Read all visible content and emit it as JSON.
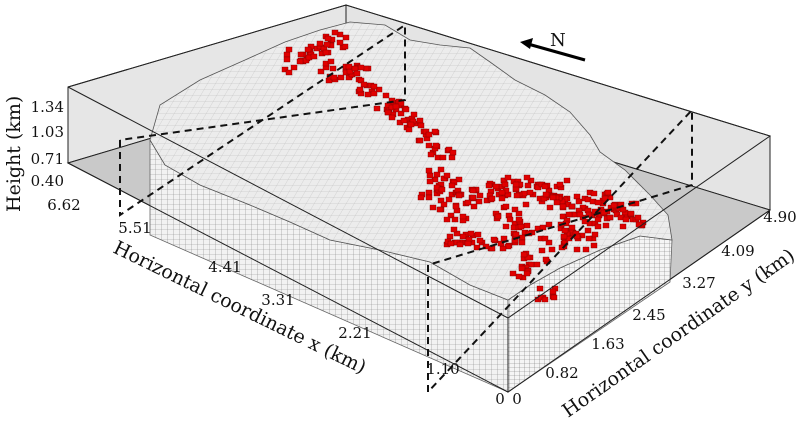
{
  "axes": {
    "x": {
      "title": "Horizontal coordinate x (km)",
      "ticks": [
        "6.62",
        "5.51",
        "4.41",
        "3.31",
        "2.21",
        "1.10",
        "0"
      ]
    },
    "y": {
      "title": "Horizontal coordinate y (km)",
      "ticks": [
        "0",
        "0.82",
        "1.63",
        "2.45",
        "3.27",
        "4.09",
        "4.90"
      ]
    },
    "z": {
      "title": "Height (km)",
      "ticks": [
        "0.40",
        "0.71",
        "1.03",
        "1.34"
      ]
    }
  },
  "north_label": "N",
  "colors": {
    "voxel_fill": "#efefef",
    "voxel_edge": "#8a8a8a",
    "highlight": "#e00000",
    "floor": "#c8c8c8",
    "back_wall": "#e4e4e4"
  }
}
